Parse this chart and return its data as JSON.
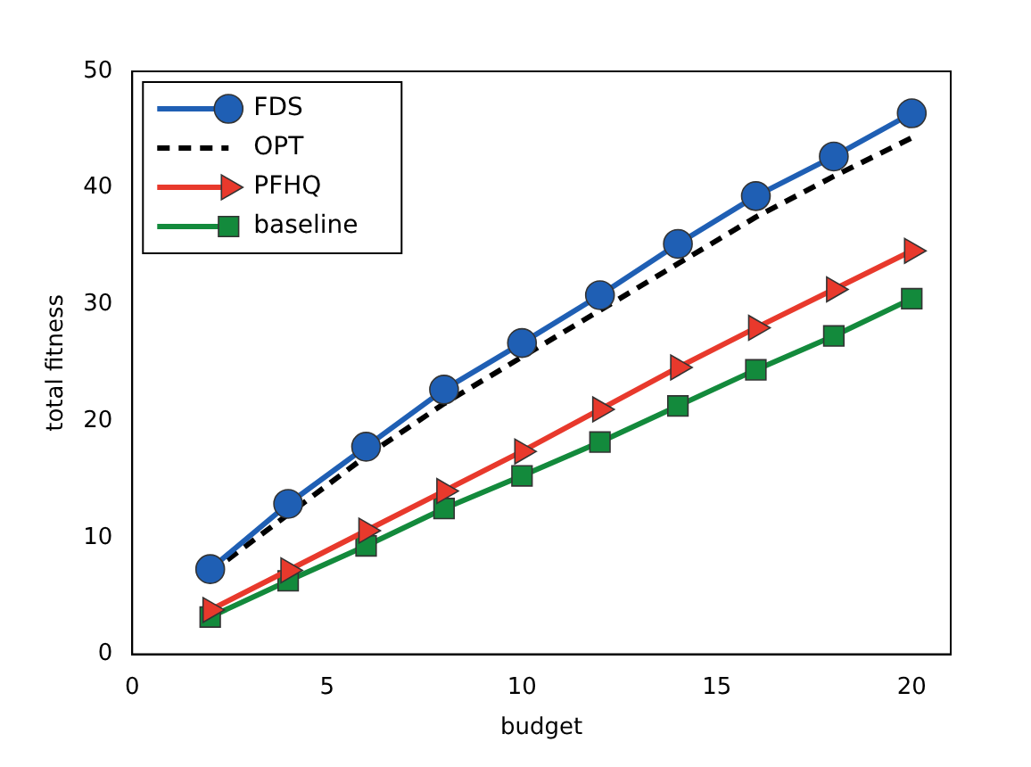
{
  "chart_data": {
    "type": "line",
    "xlabel": "budget",
    "ylabel": "total fitness",
    "x": [
      2,
      4,
      6,
      8,
      10,
      12,
      14,
      16,
      18,
      20
    ],
    "xlim": [
      0,
      21
    ],
    "xticks": [
      0,
      5,
      10,
      15,
      20
    ],
    "ylim": [
      0,
      50
    ],
    "yticks": [
      0,
      10,
      20,
      30,
      40,
      50
    ],
    "grid": false,
    "legend": "top left",
    "series": [
      {
        "name": "FDS",
        "color": "#1f5fb4",
        "marker": "circle",
        "line_style": "solid",
        "values": [
          7.3,
          12.9,
          17.8,
          22.7,
          26.7,
          30.8,
          35.2,
          39.3,
          42.7,
          46.4
        ]
      },
      {
        "name": "OPT",
        "color": "#000000",
        "marker": "none",
        "line_style": "dashed",
        "values": [
          7,
          12,
          17,
          21.5,
          25.5,
          29.5,
          33.5,
          37.5,
          41,
          44.3
        ]
      },
      {
        "name": "PFHQ",
        "color": "#e8392c",
        "marker": "triangle",
        "line_style": "solid",
        "values": [
          3.8,
          7.2,
          10.6,
          14,
          17.4,
          21,
          24.6,
          28,
          31.3,
          34.6
        ]
      },
      {
        "name": "baseline",
        "color": "#138a3c",
        "marker": "square",
        "line_style": "solid",
        "values": [
          3.2,
          6.3,
          9.3,
          12.5,
          15.3,
          18.2,
          21.3,
          24.4,
          27.3,
          30.5
        ]
      }
    ]
  }
}
